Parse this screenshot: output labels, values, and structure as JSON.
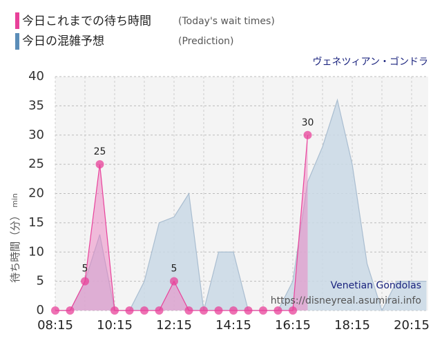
{
  "chart_data": {
    "type": "area",
    "title": "ヴェネツィアン・ゴンドラ",
    "y_label": "待ち時間（分）",
    "y_unit": "min",
    "watermark": [
      "Venetian Gondolas",
      "https://disneyreal.asumirai.info"
    ],
    "categories": [
      "08:15",
      null,
      null,
      null,
      "10:15",
      null,
      null,
      null,
      "12:15",
      null,
      null,
      null,
      "14:15",
      null,
      null,
      null,
      "16:15",
      null,
      null,
      null,
      "18:15",
      null,
      null,
      null,
      "20:15",
      null
    ],
    "series": [
      {
        "name": "今日これまでの待ち時間",
        "note": "(Today's wait times)",
        "color": "#e8419a",
        "values": [
          0,
          0,
          5,
          25,
          0,
          0,
          0,
          0,
          5,
          0,
          0,
          0,
          0,
          0,
          0,
          0,
          0,
          30,
          null,
          null,
          null,
          null,
          null,
          null,
          null,
          null
        ]
      },
      {
        "name": "今日の混雑予想",
        "note": "(Prediction)",
        "color": "#5b8db8",
        "values": [
          0,
          0,
          5,
          13,
          0,
          0,
          5,
          15,
          16,
          20,
          0,
          10,
          10,
          0,
          0,
          0,
          5,
          22,
          28,
          36,
          25,
          8,
          0,
          5,
          5,
          5
        ]
      }
    ],
    "ylim": [
      0,
      40
    ],
    "yticks": [
      0,
      5,
      10,
      15,
      20,
      25,
      30,
      35,
      40
    ],
    "grid": true
  }
}
